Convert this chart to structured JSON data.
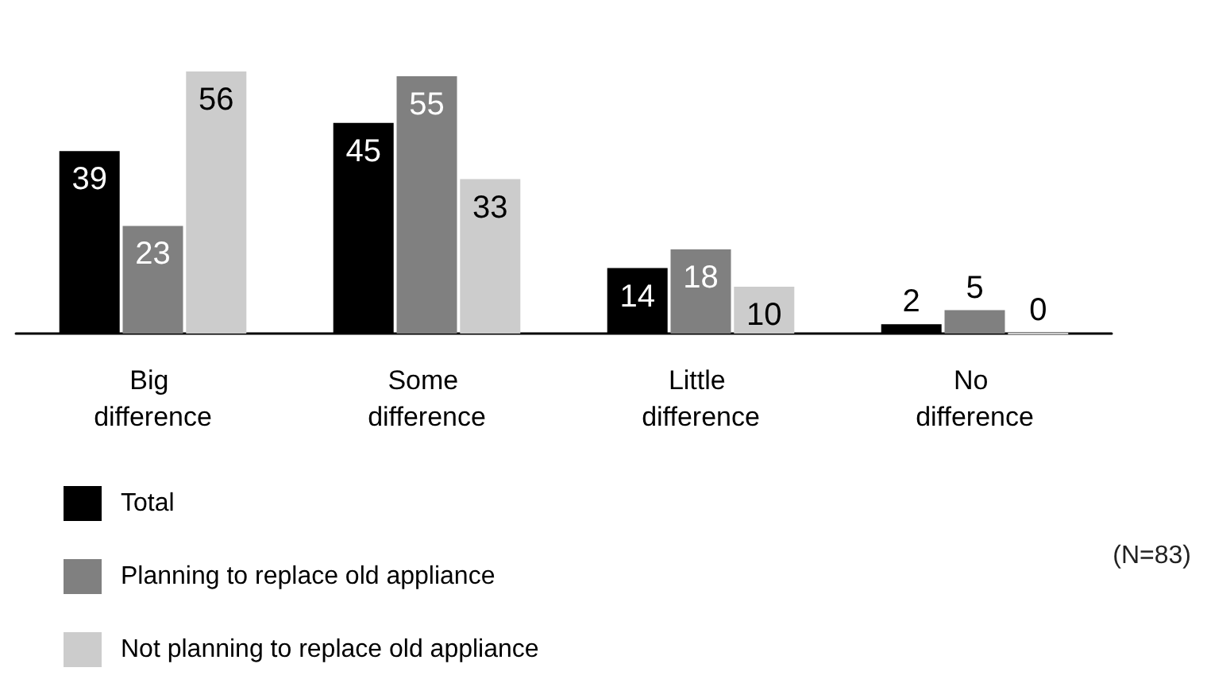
{
  "chart_data": {
    "type": "bar",
    "categories": [
      "Big difference",
      "Some difference",
      "Little difference",
      "No difference"
    ],
    "series": [
      {
        "name": "Total",
        "color": "#000000",
        "values": [
          39,
          45,
          14,
          2
        ]
      },
      {
        "name": "Planning to replace old appliance",
        "color": "#808080",
        "values": [
          23,
          55,
          18,
          5
        ]
      },
      {
        "name": "Not planning to replace old appliance",
        "color": "#cccccc",
        "values": [
          56,
          33,
          10,
          0
        ]
      }
    ],
    "data_labels": true,
    "legend": "bottom left",
    "annotations": [
      "(N=83)"
    ]
  }
}
